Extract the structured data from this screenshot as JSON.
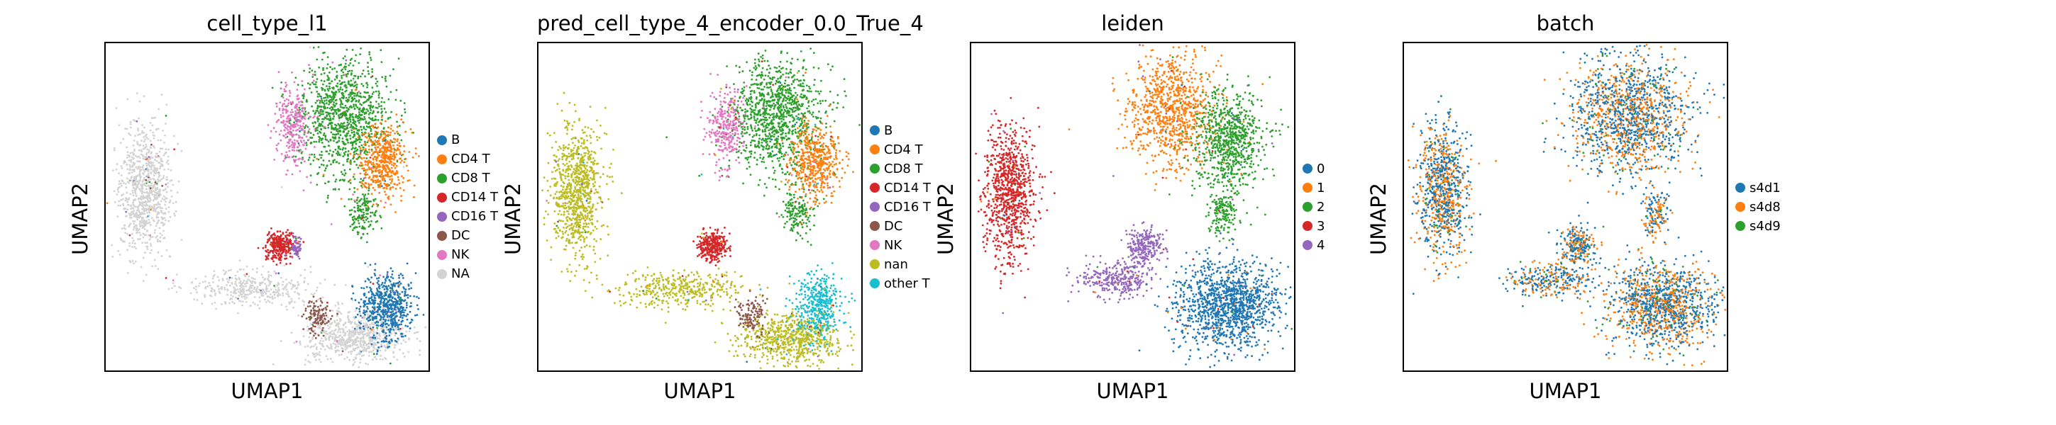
{
  "chart_data": [
    {
      "type": "scatter",
      "title": "cell_type_l1",
      "xlabel": "UMAP1",
      "ylabel": "UMAP2",
      "legend_position": "right",
      "categories": [
        {
          "name": "B",
          "color": "#1f77b4"
        },
        {
          "name": "CD4 T",
          "color": "#ff7f0e"
        },
        {
          "name": "CD8 T",
          "color": "#2ca02c"
        },
        {
          "name": "CD14 T",
          "color": "#d62728"
        },
        {
          "name": "CD16 T",
          "color": "#9467bd"
        },
        {
          "name": "DC",
          "color": "#8c564b"
        },
        {
          "name": "NK",
          "color": "#e377c2"
        },
        {
          "name": "NA",
          "color": "#d3d3d3"
        }
      ],
      "clusters": [
        {
          "cat": "NA",
          "cx": 0.12,
          "cy": 0.45,
          "rx": 0.07,
          "ry": 0.18,
          "n": 900
        },
        {
          "cat": "NA",
          "cx": 0.45,
          "cy": 0.75,
          "rx": 0.18,
          "ry": 0.05,
          "n": 400
        },
        {
          "cat": "NA",
          "cx": 0.78,
          "cy": 0.9,
          "rx": 0.14,
          "ry": 0.07,
          "n": 700
        },
        {
          "cat": "CD8 T",
          "cx": 0.74,
          "cy": 0.22,
          "rx": 0.13,
          "ry": 0.16,
          "n": 1100
        },
        {
          "cat": "CD4 T",
          "cx": 0.86,
          "cy": 0.36,
          "rx": 0.07,
          "ry": 0.1,
          "n": 500
        },
        {
          "cat": "NK",
          "cx": 0.58,
          "cy": 0.25,
          "rx": 0.05,
          "ry": 0.11,
          "n": 300
        },
        {
          "cat": "CD14 T",
          "cx": 0.54,
          "cy": 0.62,
          "rx": 0.04,
          "ry": 0.04,
          "n": 300
        },
        {
          "cat": "CD16 T",
          "cx": 0.59,
          "cy": 0.62,
          "rx": 0.015,
          "ry": 0.03,
          "n": 60
        },
        {
          "cat": "DC",
          "cx": 0.66,
          "cy": 0.83,
          "rx": 0.04,
          "ry": 0.05,
          "n": 120
        },
        {
          "cat": "B",
          "cx": 0.87,
          "cy": 0.8,
          "rx": 0.07,
          "ry": 0.09,
          "n": 600
        },
        {
          "cat": "CD8 T",
          "cx": 0.8,
          "cy": 0.52,
          "rx": 0.04,
          "ry": 0.06,
          "n": 150
        }
      ]
    },
    {
      "type": "scatter",
      "title": "pred_cell_type_4_encoder_0.0_True_4",
      "xlabel": "UMAP1",
      "ylabel": "UMAP2",
      "legend_position": "right",
      "categories": [
        {
          "name": "B",
          "color": "#1f77b4"
        },
        {
          "name": "CD4 T",
          "color": "#ff7f0e"
        },
        {
          "name": "CD8 T",
          "color": "#2ca02c"
        },
        {
          "name": "CD14 T",
          "color": "#d62728"
        },
        {
          "name": "CD16 T",
          "color": "#9467bd"
        },
        {
          "name": "DC",
          "color": "#8c564b"
        },
        {
          "name": "NK",
          "color": "#e377c2"
        },
        {
          "name": "nan",
          "color": "#bcbd22"
        },
        {
          "name": "other T",
          "color": "#17becf"
        }
      ],
      "clusters": [
        {
          "cat": "nan",
          "cx": 0.12,
          "cy": 0.45,
          "rx": 0.07,
          "ry": 0.18,
          "n": 900
        },
        {
          "cat": "nan",
          "cx": 0.45,
          "cy": 0.75,
          "rx": 0.18,
          "ry": 0.05,
          "n": 400
        },
        {
          "cat": "nan",
          "cx": 0.78,
          "cy": 0.9,
          "rx": 0.14,
          "ry": 0.07,
          "n": 700
        },
        {
          "cat": "CD8 T",
          "cx": 0.74,
          "cy": 0.22,
          "rx": 0.13,
          "ry": 0.16,
          "n": 1100
        },
        {
          "cat": "CD4 T",
          "cx": 0.86,
          "cy": 0.36,
          "rx": 0.07,
          "ry": 0.1,
          "n": 500
        },
        {
          "cat": "NK",
          "cx": 0.58,
          "cy": 0.25,
          "rx": 0.05,
          "ry": 0.11,
          "n": 300
        },
        {
          "cat": "CD14 T",
          "cx": 0.54,
          "cy": 0.62,
          "rx": 0.04,
          "ry": 0.04,
          "n": 300
        },
        {
          "cat": "DC",
          "cx": 0.66,
          "cy": 0.83,
          "rx": 0.04,
          "ry": 0.05,
          "n": 120
        },
        {
          "cat": "other T",
          "cx": 0.87,
          "cy": 0.8,
          "rx": 0.07,
          "ry": 0.09,
          "n": 400
        },
        {
          "cat": "CD8 T",
          "cx": 0.8,
          "cy": 0.52,
          "rx": 0.04,
          "ry": 0.06,
          "n": 150
        }
      ]
    },
    {
      "type": "scatter",
      "title": "leiden",
      "xlabel": "UMAP1",
      "ylabel": "UMAP2",
      "legend_position": "right",
      "categories": [
        {
          "name": "0",
          "color": "#1f77b4"
        },
        {
          "name": "1",
          "color": "#ff7f0e"
        },
        {
          "name": "2",
          "color": "#2ca02c"
        },
        {
          "name": "3",
          "color": "#d62728"
        },
        {
          "name": "4",
          "color": "#9467bd"
        }
      ],
      "clusters": [
        {
          "cat": "3",
          "cx": 0.12,
          "cy": 0.45,
          "rx": 0.07,
          "ry": 0.18,
          "n": 900
        },
        {
          "cat": "4",
          "cx": 0.45,
          "cy": 0.72,
          "rx": 0.1,
          "ry": 0.05,
          "n": 300
        },
        {
          "cat": "4",
          "cx": 0.54,
          "cy": 0.62,
          "rx": 0.05,
          "ry": 0.05,
          "n": 250
        },
        {
          "cat": "0",
          "cx": 0.8,
          "cy": 0.8,
          "rx": 0.15,
          "ry": 0.12,
          "n": 1300
        },
        {
          "cat": "1",
          "cx": 0.62,
          "cy": 0.2,
          "rx": 0.12,
          "ry": 0.15,
          "n": 900
        },
        {
          "cat": "2",
          "cx": 0.8,
          "cy": 0.3,
          "rx": 0.1,
          "ry": 0.14,
          "n": 800
        },
        {
          "cat": "2",
          "cx": 0.78,
          "cy": 0.52,
          "rx": 0.04,
          "ry": 0.06,
          "n": 150
        }
      ]
    },
    {
      "type": "scatter",
      "title": "batch",
      "xlabel": "UMAP1",
      "ylabel": "UMAP2",
      "legend_position": "right",
      "categories": [
        {
          "name": "s4d1",
          "color": "#1f77b4"
        },
        {
          "name": "s4d8",
          "color": "#ff7f0e"
        },
        {
          "name": "s4d9",
          "color": "#2ca02c"
        }
      ],
      "clusters": [
        {
          "cat": "mix",
          "cx": 0.12,
          "cy": 0.45,
          "rx": 0.07,
          "ry": 0.18,
          "n": 900
        },
        {
          "cat": "mix",
          "cx": 0.45,
          "cy": 0.72,
          "rx": 0.12,
          "ry": 0.05,
          "n": 300
        },
        {
          "cat": "mix",
          "cx": 0.54,
          "cy": 0.62,
          "rx": 0.05,
          "ry": 0.05,
          "n": 250
        },
        {
          "cat": "mix",
          "cx": 0.8,
          "cy": 0.8,
          "rx": 0.15,
          "ry": 0.12,
          "n": 1300
        },
        {
          "cat": "mix",
          "cx": 0.7,
          "cy": 0.22,
          "rx": 0.16,
          "ry": 0.17,
          "n": 1500
        },
        {
          "cat": "mix",
          "cx": 0.78,
          "cy": 0.52,
          "rx": 0.04,
          "ry": 0.06,
          "n": 150
        }
      ]
    }
  ]
}
